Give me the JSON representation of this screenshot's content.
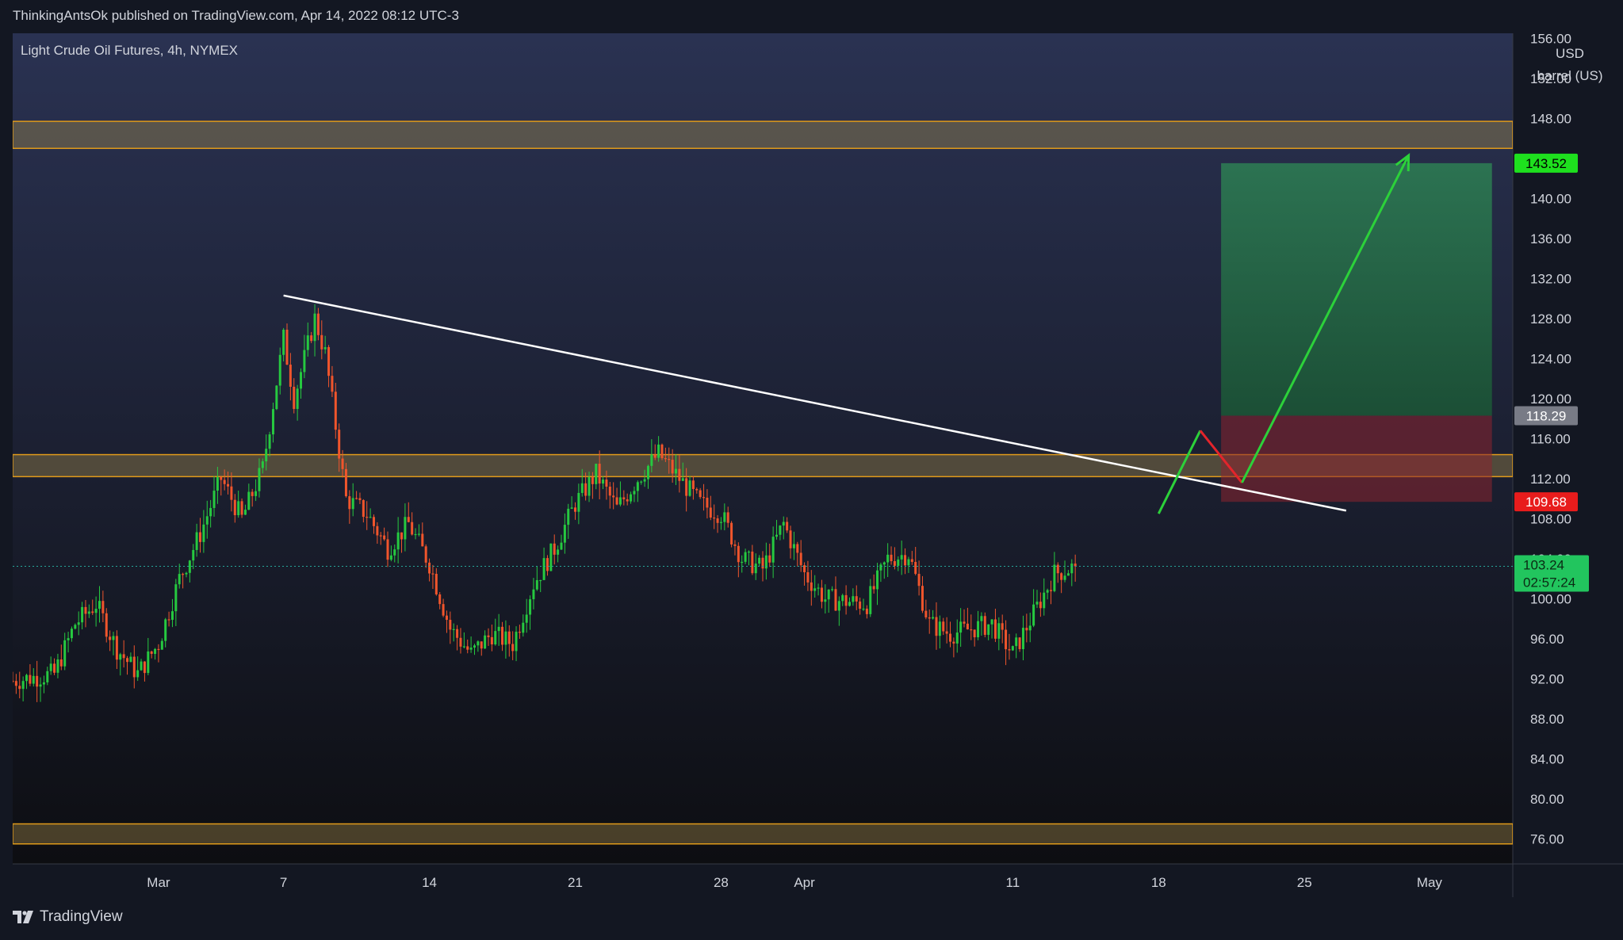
{
  "header": {
    "publisher_text": "ThinkingAntsOk published on TradingView.com, Apr 14, 2022 08:12 UTC-3"
  },
  "footer": {
    "brand": "TradingView"
  },
  "colors": {
    "bg": "#131722",
    "up": "#26c940",
    "down": "#f0552c",
    "zone": "#b89a50",
    "trend": "#ffffff",
    "target": "#1f9d55",
    "stop": "#8c2430"
  },
  "chart_data": {
    "type": "candlestick",
    "title": "Light Crude Oil Futures, 4h, NYMEX",
    "currency": "USD",
    "unit": "barrel (US)",
    "ylim": [
      73.5,
      156.5
    ],
    "y_ticks": [
      76,
      80,
      84,
      88,
      92,
      96,
      100,
      104,
      108,
      112,
      116,
      120,
      124,
      128,
      132,
      136,
      140,
      144,
      148,
      152,
      156
    ],
    "y_tick_labels": [
      "76.00",
      "80.00",
      "84.00",
      "88.00",
      "92.00",
      "96.00",
      "100.00",
      "104.00",
      "108.00",
      "112.00",
      "116.00",
      "120.00",
      "124.00",
      "128.00",
      "132.00",
      "136.00",
      "140.00",
      "144.00",
      "148.00",
      "152.00",
      "156.00"
    ],
    "x_domain": [
      "2022-02-22",
      "2022-05-05"
    ],
    "x_ticks": [
      {
        "date": "2022-03-01",
        "label": "Mar"
      },
      {
        "date": "2022-03-07",
        "label": "7"
      },
      {
        "date": "2022-03-14",
        "label": "14"
      },
      {
        "date": "2022-03-21",
        "label": "21"
      },
      {
        "date": "2022-03-28",
        "label": "28"
      },
      {
        "date": "2022-04-01",
        "label": "Apr"
      },
      {
        "date": "2022-04-11",
        "label": "11"
      },
      {
        "date": "2022-04-18",
        "label": "18"
      },
      {
        "date": "2022-04-25",
        "label": "25"
      },
      {
        "date": "2022-05-01",
        "label": "May"
      }
    ],
    "price_path": [
      [
        "2022-02-22",
        91.8
      ],
      [
        "2022-02-24",
        92.5
      ],
      [
        "2022-02-25",
        97.5
      ],
      [
        "2022-02-26",
        99.5
      ],
      [
        "2022-02-27",
        95.0
      ],
      [
        "2022-02-28",
        92.5
      ],
      [
        "2022-03-01",
        95.5
      ],
      [
        "2022-03-02",
        102.0
      ],
      [
        "2022-03-03",
        106.5
      ],
      [
        "2022-03-04",
        112.0
      ],
      [
        "2022-03-05",
        108.0
      ],
      [
        "2022-03-06",
        113.0
      ],
      [
        "2022-03-07",
        126.0
      ],
      [
        "2022-03-07 12:00",
        120.0
      ],
      [
        "2022-03-08",
        124.0
      ],
      [
        "2022-03-08 12:00",
        128.0
      ],
      [
        "2022-03-09",
        124.5
      ],
      [
        "2022-03-10",
        110.0
      ],
      [
        "2022-03-11",
        108.5
      ],
      [
        "2022-03-12",
        105.0
      ],
      [
        "2022-03-13",
        107.5
      ],
      [
        "2022-03-14",
        103.5
      ],
      [
        "2022-03-15",
        97.0
      ],
      [
        "2022-03-16",
        94.5
      ],
      [
        "2022-03-17",
        96.5
      ],
      [
        "2022-03-18",
        95.5
      ],
      [
        "2022-03-19",
        101.5
      ],
      [
        "2022-03-20",
        105.0
      ],
      [
        "2022-03-21",
        109.5
      ],
      [
        "2022-03-22",
        112.5
      ],
      [
        "2022-03-23",
        109.0
      ],
      [
        "2022-03-24",
        112.0
      ],
      [
        "2022-03-25",
        114.5
      ],
      [
        "2022-03-26",
        112.0
      ],
      [
        "2022-03-27",
        109.5
      ],
      [
        "2022-03-28",
        108.5
      ],
      [
        "2022-03-29",
        104.0
      ],
      [
        "2022-03-30",
        103.0
      ],
      [
        "2022-03-31",
        107.5
      ],
      [
        "2022-04-01",
        102.5
      ],
      [
        "2022-04-02",
        100.0
      ],
      [
        "2022-04-04",
        99.5
      ],
      [
        "2022-04-05",
        104.0
      ],
      [
        "2022-04-06",
        104.5
      ],
      [
        "2022-04-07",
        97.5
      ],
      [
        "2022-04-08",
        96.5
      ],
      [
        "2022-04-09",
        97.0
      ],
      [
        "2022-04-10",
        97.5
      ],
      [
        "2022-04-11",
        94.5
      ],
      [
        "2022-04-12",
        98.5
      ],
      [
        "2022-04-13",
        102.5
      ],
      [
        "2022-04-14",
        103.24
      ]
    ],
    "series": [
      {
        "name": "Zone 148–145",
        "type": "zone",
        "from": 145.0,
        "to": 147.7
      },
      {
        "name": "Zone 114–112",
        "type": "zone",
        "from": 112.2,
        "to": 114.4
      },
      {
        "name": "Zone 78–76",
        "type": "zone",
        "from": 75.5,
        "to": 77.5
      },
      {
        "name": "Descending trendline",
        "type": "line",
        "points": [
          [
            "2022-03-07",
            130.3
          ],
          [
            "2022-04-27",
            108.8
          ]
        ]
      },
      {
        "name": "Target zone",
        "type": "box",
        "x": [
          "2022-04-21",
          "2022-05-04"
        ],
        "from": 118.29,
        "to": 143.52
      },
      {
        "name": "Stop zone",
        "type": "box",
        "x": [
          "2022-04-21",
          "2022-05-04"
        ],
        "from": 109.68,
        "to": 118.29
      },
      {
        "name": "Projected move up",
        "type": "path",
        "points": [
          [
            "2022-04-18",
            108.5
          ],
          [
            "2022-04-20",
            116.8
          ]
        ]
      },
      {
        "name": "Projected pullback",
        "type": "path",
        "points": [
          [
            "2022-04-20",
            116.8
          ],
          [
            "2022-04-22",
            111.6
          ]
        ]
      },
      {
        "name": "Projected rally",
        "type": "arrow",
        "points": [
          [
            "2022-04-22",
            111.6
          ],
          [
            "2022-04-30",
            144.3
          ]
        ]
      }
    ],
    "labels": {
      "target_price": "143.52",
      "stop_price_upper": "118.29",
      "stop_price_lower": "109.68",
      "last_price": "103.24",
      "countdown": "02:57:24",
      "last_price_value": 103.24
    },
    "grid": false
  }
}
